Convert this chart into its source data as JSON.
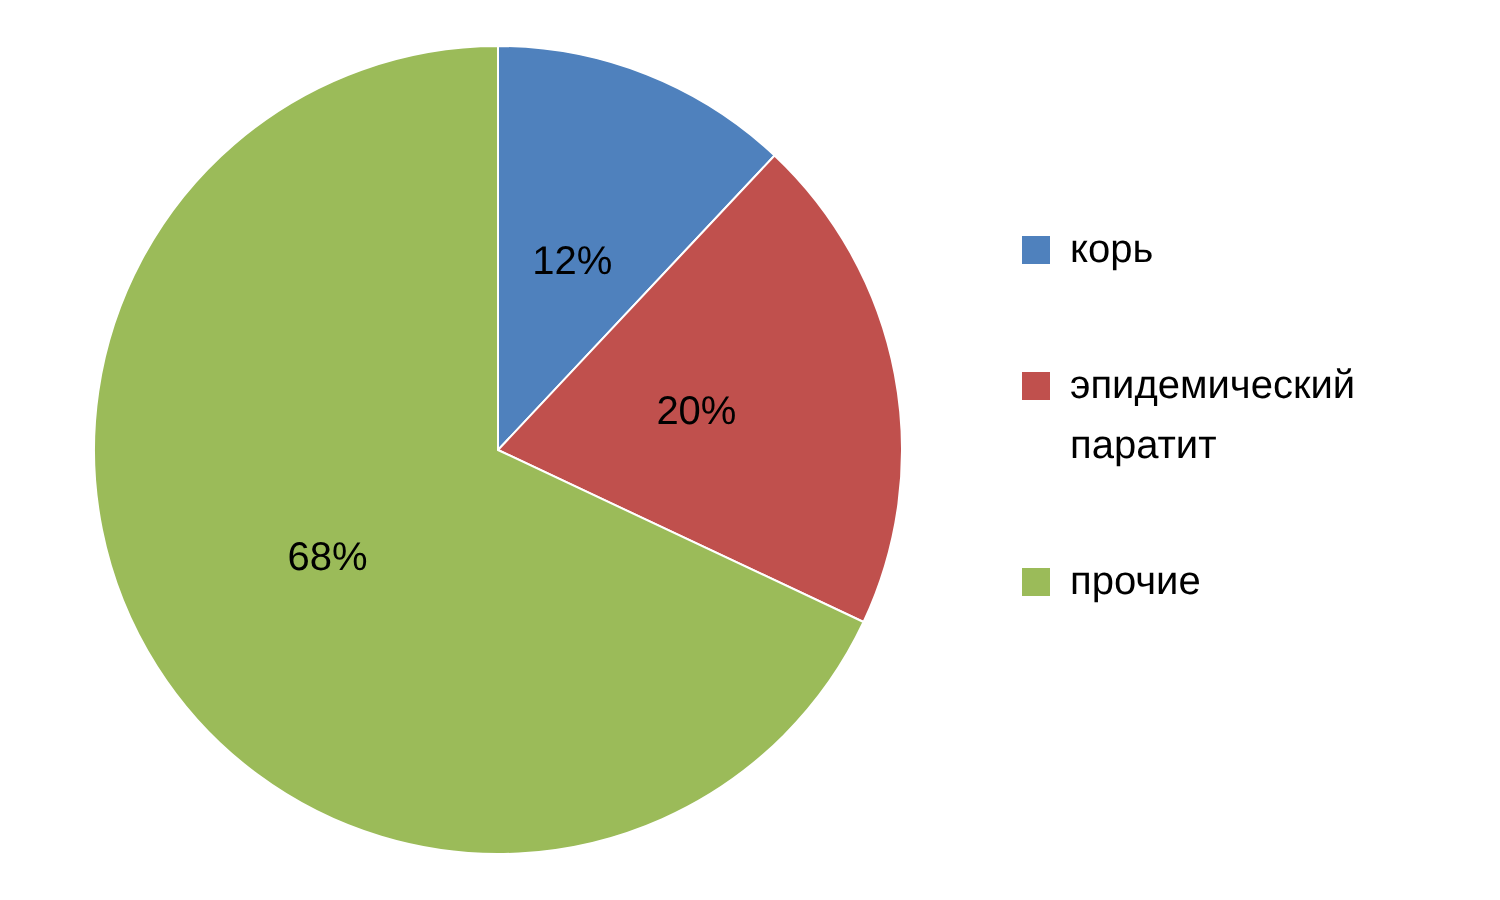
{
  "chart_data": {
    "type": "pie",
    "categories": [
      "корь",
      "эпидемический паратит",
      "прочие"
    ],
    "values": [
      12,
      20,
      68
    ],
    "colors": [
      "#4f81bd",
      "#c0504d",
      "#9bbb59"
    ],
    "value_labels": [
      "12%",
      "20%",
      "68%"
    ],
    "legend": "right"
  }
}
